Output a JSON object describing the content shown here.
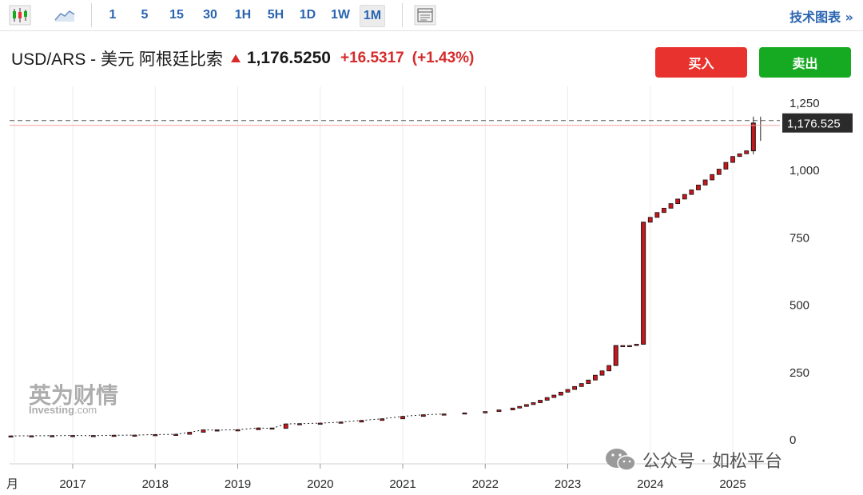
{
  "toolbar": {
    "timeframes": [
      "1",
      "5",
      "15",
      "30",
      "1H",
      "5H",
      "1D",
      "1W",
      "1M"
    ],
    "active_timeframe": "1M",
    "tech_chart_label": "技术图表 »"
  },
  "header": {
    "pair": "USD/ARS - 美元 阿根廷比索",
    "last": "1,176.5250",
    "change": "+16.5317",
    "change_pct": "(+1.43%)",
    "buy_label": "买入",
    "sell_label": "卖出"
  },
  "colors": {
    "up": "#d62b2b",
    "buy": "#e8322d",
    "sell": "#16a922",
    "link": "#2a64b0"
  },
  "chart_data": {
    "type": "candlestick",
    "y_ticks": [
      "1,250",
      "1,000",
      "750",
      "500",
      "250",
      "0"
    ],
    "y_tick_values": [
      1250,
      1000,
      750,
      500,
      250,
      0
    ],
    "x_ticks": [
      "2017",
      "2018",
      "2019",
      "2020",
      "2021",
      "2022",
      "2023",
      "2024",
      "2025"
    ],
    "x_partial_label": "月",
    "ylim": [
      0,
      1250
    ],
    "current_price_label": "1,176.525",
    "current_price": 1176.525,
    "timespan": [
      "2016-04",
      "2025-05"
    ],
    "series": [
      {
        "t": "2016-04",
        "v": 14.5
      },
      {
        "t": "2016-07",
        "v": 15
      },
      {
        "t": "2016-10",
        "v": 15.5
      },
      {
        "t": "2017-01",
        "v": 16
      },
      {
        "t": "2017-04",
        "v": 15.5
      },
      {
        "t": "2017-07",
        "v": 17
      },
      {
        "t": "2017-10",
        "v": 17.5
      },
      {
        "t": "2018-01",
        "v": 19.5
      },
      {
        "t": "2018-04",
        "v": 20.5
      },
      {
        "t": "2018-06",
        "v": 28
      },
      {
        "t": "2018-08",
        "v": 37
      },
      {
        "t": "2018-10",
        "v": 36
      },
      {
        "t": "2019-01",
        "v": 37.5
      },
      {
        "t": "2019-04",
        "v": 44
      },
      {
        "t": "2019-06",
        "v": 42.5
      },
      {
        "t": "2019-08",
        "v": 59
      },
      {
        "t": "2019-10",
        "v": 60
      },
      {
        "t": "2020-01",
        "v": 62
      },
      {
        "t": "2020-04",
        "v": 66
      },
      {
        "t": "2020-07",
        "v": 72
      },
      {
        "t": "2020-10",
        "v": 78
      },
      {
        "t": "2021-01",
        "v": 87
      },
      {
        "t": "2021-04",
        "v": 93
      },
      {
        "t": "2021-07",
        "v": 96
      },
      {
        "t": "2021-10",
        "v": 100
      },
      {
        "t": "2022-01",
        "v": 105
      },
      {
        "t": "2022-03",
        "v": 111
      },
      {
        "t": "2022-05",
        "v": 118
      },
      {
        "t": "2022-06",
        "v": 124
      },
      {
        "t": "2022-07",
        "v": 131
      },
      {
        "t": "2022-08",
        "v": 138
      },
      {
        "t": "2022-09",
        "v": 147
      },
      {
        "t": "2022-10",
        "v": 157
      },
      {
        "t": "2022-11",
        "v": 166
      },
      {
        "t": "2022-12",
        "v": 177
      },
      {
        "t": "2023-01",
        "v": 187
      },
      {
        "t": "2023-02",
        "v": 198
      },
      {
        "t": "2023-03",
        "v": 209
      },
      {
        "t": "2023-04",
        "v": 222
      },
      {
        "t": "2023-05",
        "v": 240
      },
      {
        "t": "2023-06",
        "v": 256
      },
      {
        "t": "2023-07",
        "v": 276
      },
      {
        "t": "2023-08",
        "v": 350
      },
      {
        "t": "2023-09",
        "v": 350
      },
      {
        "t": "2023-10",
        "v": 350
      },
      {
        "t": "2023-11",
        "v": 355
      },
      {
        "t": "2023-12",
        "v": 808
      },
      {
        "t": "2024-01",
        "v": 826
      },
      {
        "t": "2024-02",
        "v": 844
      },
      {
        "t": "2024-03",
        "v": 860
      },
      {
        "t": "2024-04",
        "v": 877
      },
      {
        "t": "2024-05",
        "v": 894
      },
      {
        "t": "2024-06",
        "v": 911
      },
      {
        "t": "2024-07",
        "v": 928
      },
      {
        "t": "2024-08",
        "v": 946
      },
      {
        "t": "2024-09",
        "v": 965
      },
      {
        "t": "2024-10",
        "v": 985
      },
      {
        "t": "2024-11",
        "v": 1005
      },
      {
        "t": "2024-12",
        "v": 1030
      },
      {
        "t": "2025-01",
        "v": 1052
      },
      {
        "t": "2025-02",
        "v": 1062
      },
      {
        "t": "2025-03",
        "v": 1073
      },
      {
        "t": "2025-04",
        "v": 1176
      }
    ],
    "big_candles": [
      {
        "t": "2023-08",
        "open": 276,
        "close": 350
      },
      {
        "t": "2023-12",
        "open": 355,
        "close": 808
      },
      {
        "t": "2025-04",
        "open": 1073,
        "close": 1176,
        "high": 1200,
        "low": 1060
      }
    ]
  },
  "watermark": {
    "brand_cn": "英为财情",
    "brand_en": "Investing",
    "domain": ".com"
  },
  "wechat": {
    "text": "公众号 · 如松平台"
  }
}
